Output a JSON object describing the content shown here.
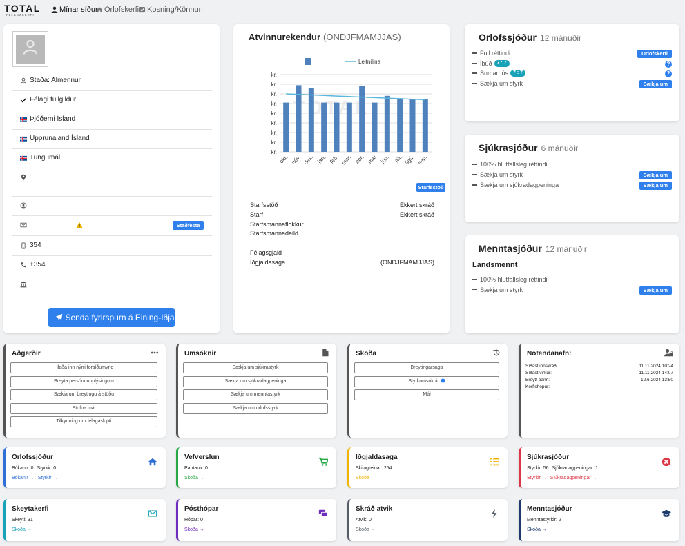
{
  "nav": {
    "logo": "TOTAL",
    "logo_sub": "FÉLAGAKERFI",
    "items": [
      "Mínar síður",
      "Orlofskerfi",
      "Kosning/Könnun"
    ]
  },
  "profile": {
    "rows": [
      "Staða: Almennur",
      "Félagi fullgildur",
      "Þjóðerni Ísland",
      "Upprunaland Ísland",
      "Tungumál"
    ],
    "verify_button": "Staðfesta",
    "phone": "354",
    "mobile": "+354",
    "send_button": "Senda fyrirspurn á Eining-Iðja"
  },
  "employer": {
    "title": "Atvinnurekendur",
    "title_suffix": "(ONDJFMAMJJAS)",
    "chart": {
      "type": "bar",
      "categories": [
        "okt.",
        "nóv.",
        "des.",
        "jan.",
        "feb.",
        "mar.",
        "apr.",
        "maí",
        "jún.",
        "júl.",
        "ágú.",
        "sep."
      ],
      "series": [
        {
          "color": "#4f81bd",
          "values": [
            5.1,
            6.9,
            6.6,
            5.1,
            5.1,
            5.1,
            6.8,
            5.1,
            5.8,
            5.5,
            5.5,
            5.5
          ]
        },
        {
          "name": "Leitnilína",
          "type": "line",
          "color": "#5bb8dc",
          "values": [
            6.0,
            5.95,
            5.89,
            5.84,
            5.78,
            5.73,
            5.67,
            5.62,
            5.56,
            5.51,
            5.45,
            5.4
          ]
        }
      ],
      "ylim": [
        0,
        8
      ],
      "yticks": [
        {
          "value": 0,
          "label": "kr."
        },
        {
          "value": 1,
          "label": "kr."
        },
        {
          "value": 2,
          "label": "kr."
        },
        {
          "value": 3,
          "label": "kr."
        },
        {
          "value": 4,
          "label": "kr."
        },
        {
          "value": 5,
          "label": "kr."
        },
        {
          "value": 6,
          "label": "kr."
        },
        {
          "value": 7,
          "label": "kr."
        },
        {
          "value": 8,
          "label": "kr."
        }
      ],
      "grid": true
    },
    "button": "Starfsstöð",
    "rows": [
      [
        "Starfsstöð",
        "Ekkert skráð"
      ],
      [
        "Starf",
        "Ekkert skráð"
      ],
      [
        "Starfsmannaflokkur"
      ],
      [
        "Starfsmannadeild"
      ],
      [
        "Félagsgjald"
      ],
      [
        "Iðgjaldasaga",
        "(ONDJFMAMJJAS)"
      ]
    ]
  },
  "funds": [
    {
      "title": "Orlofssjóður",
      "period": "12 mánuðir",
      "rows": [
        {
          "label": "Full réttindi",
          "button": "Orlofskerfi"
        },
        {
          "label": "Íbúð",
          "badge": "7 : 7",
          "help": "?"
        },
        {
          "label": "Sumarhús",
          "badge": "7 : 7",
          "help": "?"
        },
        {
          "label": "Sækja um styrk",
          "button": "Sækja um"
        }
      ]
    },
    {
      "title": "Sjúkrasjóður",
      "period": "6 mánuðir",
      "rows": [
        {
          "label": "100% hlutfallsleg réttindi"
        },
        {
          "label": "Sækja um styrk",
          "button": "Sækja um"
        },
        {
          "label": "Sækja um sjúkradagpeninga",
          "button": "Sækja um"
        }
      ]
    },
    {
      "title": "Menntasjóður",
      "period": "12 mánuðir",
      "subtitle": "Landsmennt",
      "rows": [
        {
          "label": "100% hlutfallsleg réttindi"
        },
        {
          "label": "Sækja um styrk",
          "button": "Sækja um"
        }
      ]
    }
  ],
  "panels": [
    {
      "title": "Aðgerðir",
      "buttons": [
        "Hlaða inn nýrri forsíðumynd",
        "Breyta persónuupplýsingum",
        "Sækja um breytingu á stöðu",
        "Stofna mál",
        "Tilkynning um félagaskipti"
      ]
    },
    {
      "title": "Umsóknir",
      "buttons": [
        "Sækja um sjúkrastyrk",
        "Sækja um sjúkradagpeninga",
        "Sækja um menntastyrk",
        "Sækja um orlofsstyrk"
      ]
    },
    {
      "title": "Skoða",
      "buttons": [
        "Breytingarsaga",
        "Styrkumsóknir",
        "Mál"
      ]
    },
    {
      "title": "Notendanafn:",
      "rows": [
        [
          "Síðast innskráð:",
          "11.11.2024 10:24"
        ],
        [
          "Síðast virkur:",
          "11.11.2024 14:07"
        ],
        [
          "Breytt þann:",
          "12.6.2024 13:50"
        ],
        [
          "Kerfishópur:"
        ]
      ]
    }
  ],
  "tiles": [
    {
      "title": "Orlofssjóður",
      "color": "#2f6fd6",
      "stats": [
        "Bókanir: 0",
        "Styrkir: 0"
      ],
      "links": [
        "Bókanir →",
        "Styrkir →"
      ]
    },
    {
      "title": "Vefverslun",
      "color": "#28a745",
      "stats": [
        "Pantanir: 0"
      ],
      "links": [
        "Skoða →"
      ]
    },
    {
      "title": "Iðgjaldasaga",
      "color": "#f0b400",
      "stats": [
        "Skilagreinar: 254"
      ],
      "links": [
        "Skoða →"
      ]
    },
    {
      "title": "Sjúkrasjóður",
      "color": "#dc3545",
      "stats": [
        "Styrkir: 56",
        "Sjúkradagpeningar: 1"
      ],
      "links": [
        "Styrkir →",
        "Sjúkradagpeningar →"
      ]
    },
    {
      "title": "Skeytakerfi",
      "color": "#17a2b8",
      "stats": [
        "Skeyti: 31"
      ],
      "links": [
        "Skoða →"
      ]
    },
    {
      "title": "Pósthópar",
      "color": "#6f2dbd",
      "stats": [
        "Hópar: 0"
      ],
      "links": [
        "Skoða →"
      ]
    },
    {
      "title": "Skráð atvik",
      "color": "#555d66",
      "stats": [
        "Atvik: 0"
      ],
      "links": [
        "Skoða →"
      ]
    },
    {
      "title": "Menntasjóður",
      "color": "#1d3a6e",
      "stats": [
        "Menntastyrkir: 2"
      ],
      "links": [
        "Skoða →"
      ]
    }
  ]
}
